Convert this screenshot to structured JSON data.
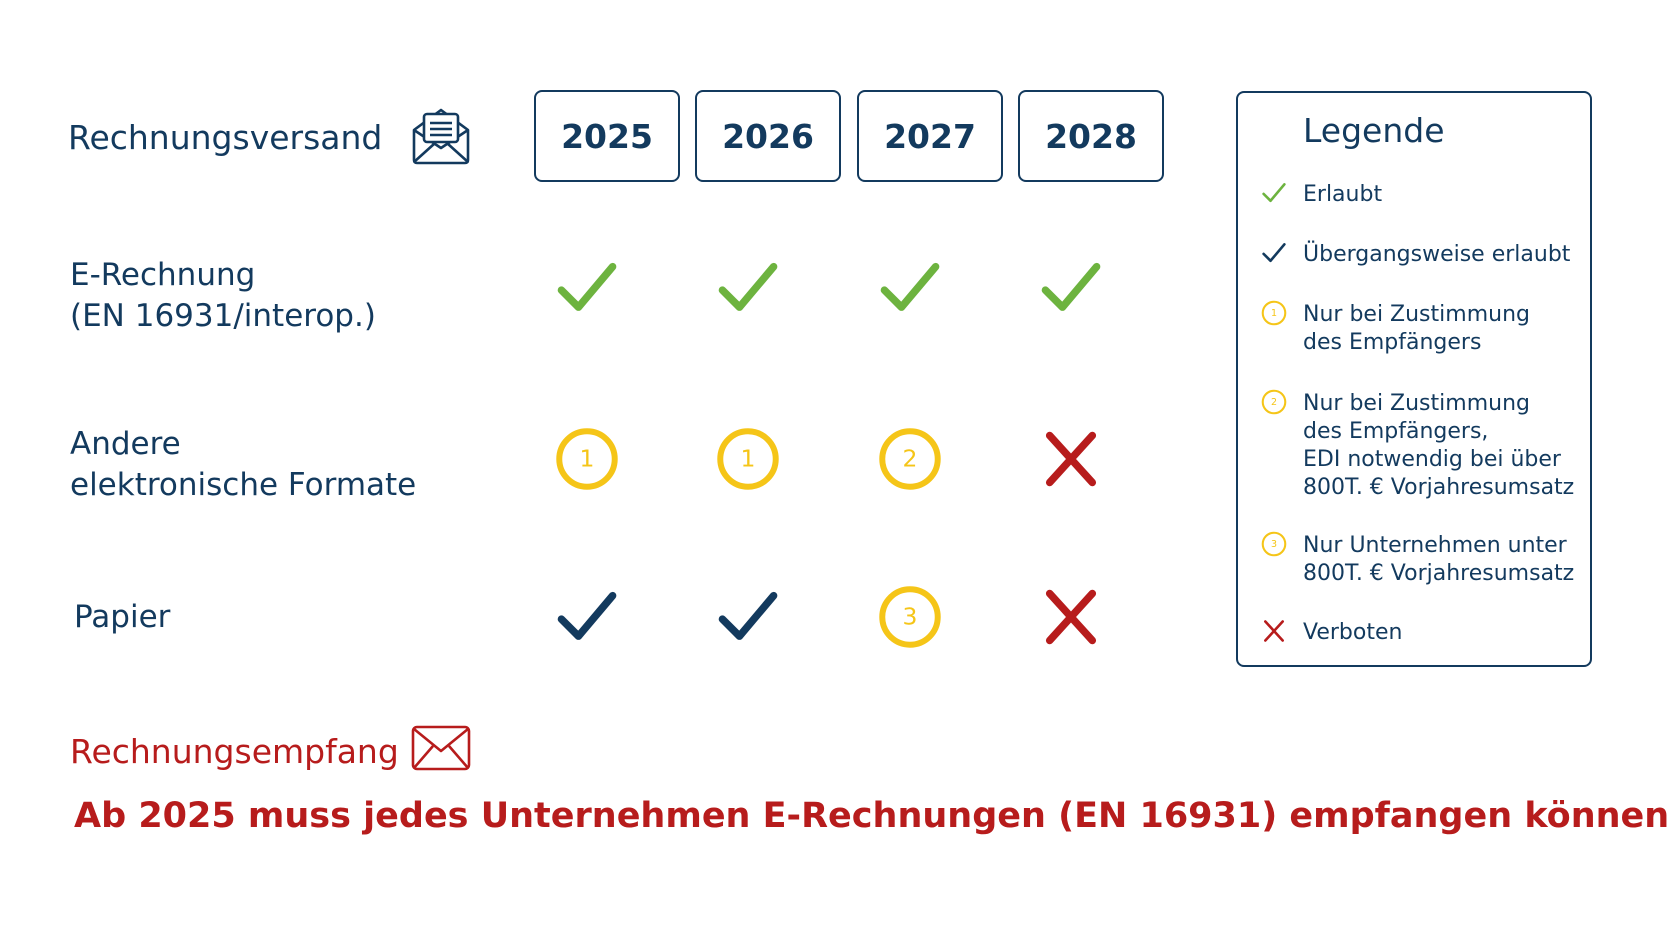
{
  "header": {
    "send_title": "Rechnungsversand",
    "receive_title": "Rechnungsempfang"
  },
  "years": [
    "2025",
    "2026",
    "2027",
    "2028"
  ],
  "rows": [
    {
      "label_lines": [
        "E-Rechnung",
        "(EN 16931/interop.)"
      ],
      "cells": [
        "allowed",
        "allowed",
        "allowed",
        "allowed"
      ]
    },
    {
      "label_lines": [
        "Andere",
        "elektronische Formate"
      ],
      "cells": [
        "consent-1",
        "consent-1",
        "consent-2",
        "forbidden"
      ]
    },
    {
      "label_lines": [
        "Papier"
      ],
      "cells": [
        "transitional",
        "transitional",
        "consent-3",
        "forbidden"
      ]
    }
  ],
  "legend": {
    "title": "Legende",
    "items": [
      {
        "icon": "allowed",
        "lines": [
          "Erlaubt"
        ]
      },
      {
        "icon": "transitional",
        "lines": [
          "Übergangsweise erlaubt"
        ]
      },
      {
        "icon": "consent-1",
        "lines": [
          "Nur bei Zustimmung",
          "des Empfängers"
        ]
      },
      {
        "icon": "consent-2",
        "lines": [
          "Nur bei Zustimmung",
          "des Empfängers,",
          "EDI notwendig bei über",
          "800T. € Vorjahresumsatz"
        ]
      },
      {
        "icon": "consent-3",
        "lines": [
          "Nur Unternehmen unter",
          "800T. € Vorjahresumsatz"
        ]
      },
      {
        "icon": "forbidden",
        "lines": [
          "Verboten"
        ]
      }
    ]
  },
  "icon_numbers": {
    "consent-1": "1",
    "consent-2": "2",
    "consent-3": "3"
  },
  "note": "Ab 2025 muss jedes Unternehmen E-Rechnungen (EN 16931) empfangen können!",
  "colors": {
    "navy": "#133a5e",
    "green": "#6db33f",
    "yellow": "#f5c518",
    "red": "#b71c1c"
  }
}
